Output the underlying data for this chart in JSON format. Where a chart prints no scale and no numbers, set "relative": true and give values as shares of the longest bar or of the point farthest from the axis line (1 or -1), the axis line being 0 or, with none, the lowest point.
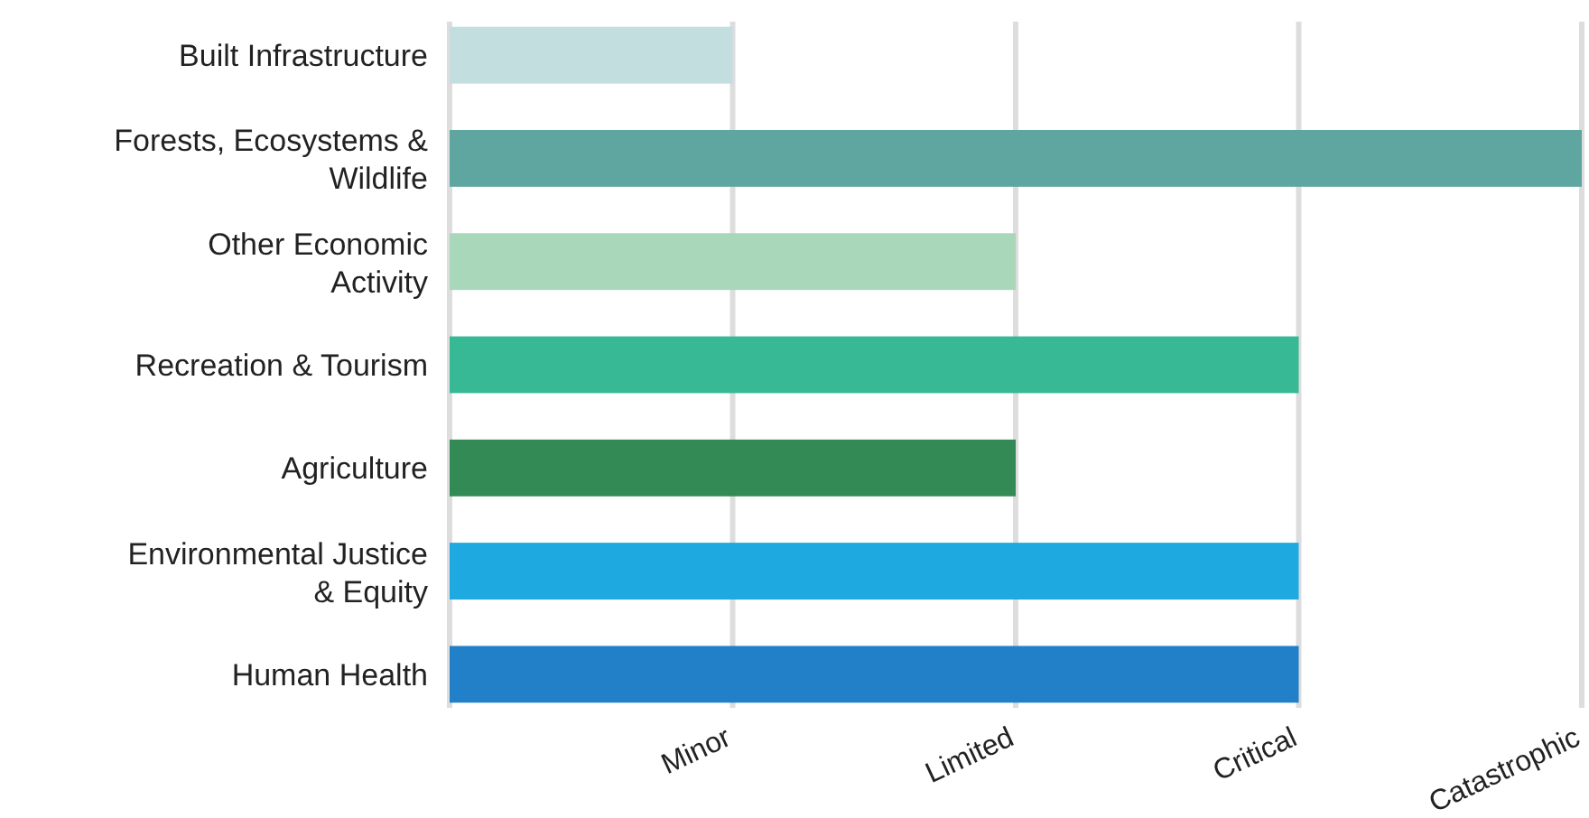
{
  "chart_data": {
    "type": "bar",
    "orientation": "horizontal",
    "relative": true,
    "categories": [
      "Built Infrastructure",
      "Forests, Ecosystems & Wildlife",
      "Other Economic Activity",
      "Recreation & Tourism",
      "Agriculture",
      "Environmental Justice & Equity",
      "Human Health"
    ],
    "values": [
      0.25,
      1,
      0.5,
      0.75,
      0.5,
      0.75,
      0.75
    ],
    "colors": [
      "#c2dede",
      "#5fa5a0",
      "#a8d8b9",
      "#38b996",
      "#338a55",
      "#1ea9e1",
      "#2180c8"
    ],
    "annotations": [
      "Minor",
      "Limited",
      "Critical",
      "Catastrophic"
    ],
    "grid": "x"
  }
}
